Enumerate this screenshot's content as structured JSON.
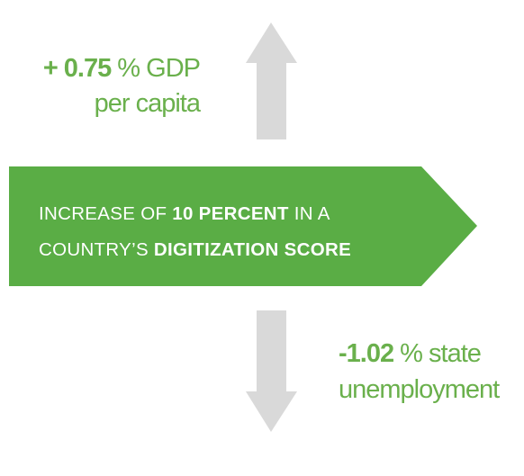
{
  "top_stat": {
    "value": "+ 0.75",
    "unit": " % GDP",
    "line2": "per capita"
  },
  "banner": {
    "line1": {
      "pre": "INCREASE OF ",
      "bold": "10 PERCENT",
      "post": " IN A"
    },
    "line2": {
      "pre": "COUNTRY’S ",
      "bold": "DIGITIZATION SCORE"
    }
  },
  "bottom_stat": {
    "value": "-1.02",
    "unit": " % state",
    "line2": "unemployment"
  }
}
